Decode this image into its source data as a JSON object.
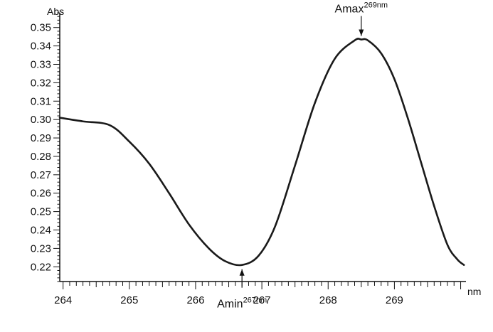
{
  "chart_data": {
    "type": "line",
    "title": "",
    "xlabel": "nm",
    "ylabel": "Abs",
    "xlim": [
      263.95,
      270.08
    ],
    "ylim": [
      0.212,
      0.358
    ],
    "x_ticks": [
      264,
      265,
      266,
      267,
      268,
      269
    ],
    "x_tick_labels": [
      "264",
      "265",
      "266",
      "267",
      "268",
      "269"
    ],
    "y_ticks": [
      0.22,
      0.23,
      0.24,
      0.25,
      0.26,
      0.27,
      0.28,
      0.29,
      0.3,
      0.31,
      0.32,
      0.33,
      0.34,
      0.35
    ],
    "y_tick_labels": [
      "0.22",
      "0.23",
      "0.24",
      "0.25",
      "0.26",
      "0.27",
      "0.28",
      "0.29",
      "0.30",
      "0.31",
      "0.32",
      "0.33",
      "0.34",
      "0.35"
    ],
    "grid": false,
    "line_color": "#1a1a1a",
    "series": [
      {
        "x": [
          263.95,
          264.3,
          264.7,
          265.0,
          265.3,
          265.6,
          265.9,
          266.2,
          266.45,
          266.7,
          266.95,
          267.2,
          267.5,
          267.8,
          268.1,
          268.4,
          268.5,
          268.6,
          268.8,
          269.0,
          269.2,
          269.4,
          269.6,
          269.8,
          269.95,
          270.05
        ],
        "y": [
          0.301,
          0.299,
          0.297,
          0.288,
          0.276,
          0.26,
          0.243,
          0.23,
          0.223,
          0.221,
          0.226,
          0.242,
          0.275,
          0.309,
          0.333,
          0.343,
          0.3435,
          0.343,
          0.336,
          0.322,
          0.301,
          0.277,
          0.253,
          0.232,
          0.224,
          0.221
        ]
      }
    ],
    "annotations": [
      {
        "label": "Amax",
        "sup": "269nm",
        "x": 268.5,
        "y": 0.3435,
        "position": "above"
      },
      {
        "label": "Amin",
        "sup": "267nm",
        "x": 266.7,
        "y": 0.221,
        "position": "below"
      }
    ]
  }
}
